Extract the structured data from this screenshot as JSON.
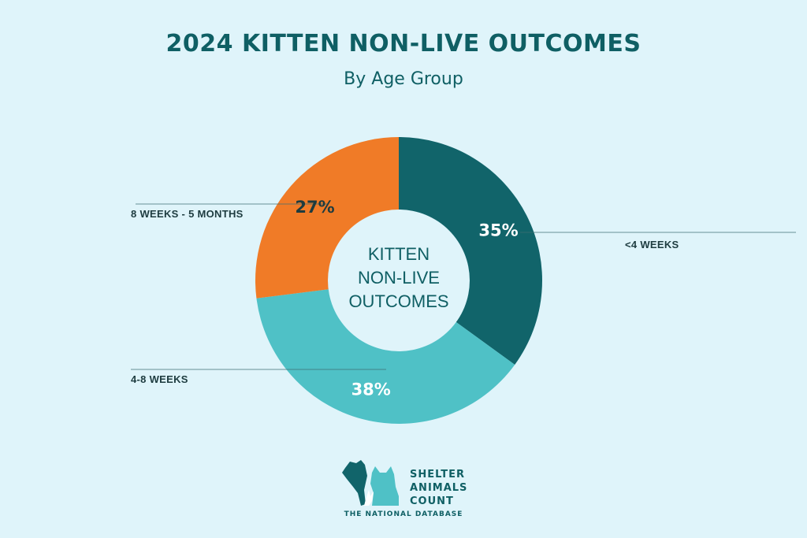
{
  "header": {
    "title": "2024 KITTEN NON-LIVE OUTCOMES",
    "subtitle": "By Age Group"
  },
  "chart_data": {
    "type": "pie",
    "title": "2024 KITTEN NON-LIVE OUTCOMES",
    "subtitle": "By Age Group",
    "center_label": [
      "KITTEN",
      "NON-LIVE",
      "OUTCOMES"
    ],
    "slices": [
      {
        "name": "<4 WEEKS",
        "value": 35,
        "label": "35%",
        "color": "#11646a"
      },
      {
        "name": "4-8 WEEKS",
        "value": 38,
        "label": "38%",
        "color": "#4fc1c6"
      },
      {
        "name": "8 WEEKS - 5 MONTHS",
        "value": 27,
        "label": "27%",
        "color": "#f07b27"
      }
    ]
  },
  "logo": {
    "line1": "SHELTER",
    "line2": "ANIMALS",
    "line3": "COUNT",
    "tagline": "THE NATIONAL DATABASE",
    "colors": {
      "dark": "#11646a",
      "light": "#4fc1c6"
    }
  }
}
